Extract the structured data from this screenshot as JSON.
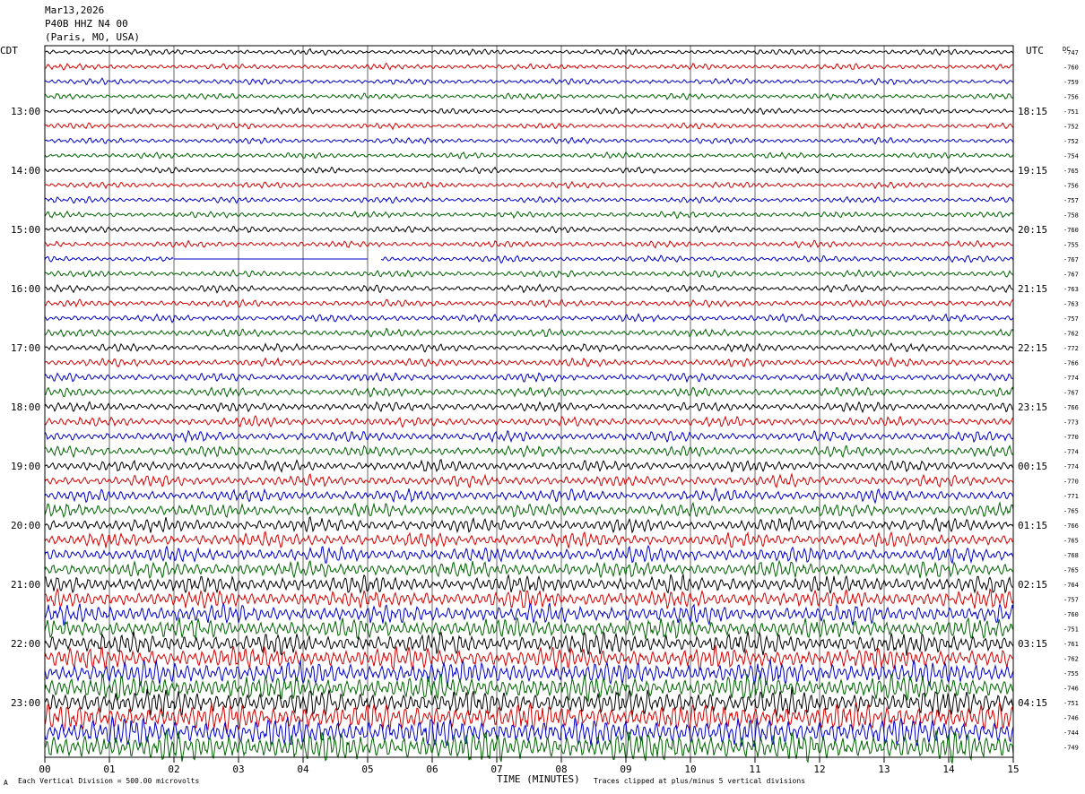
{
  "header": {
    "date": "Mar13,2026",
    "station": "P40B HHZ N4 00",
    "location": "(Paris, MO, USA)"
  },
  "left_zone": "CDT",
  "right_zone": "UTC",
  "dc_header": "DC",
  "footer": {
    "left": "Each Vertical Division =  500.00 microvolts",
    "center": "TIME (MINUTES)",
    "right": "Traces clipped at plus/minus 5 vertical divisions",
    "corner_mark": "A"
  },
  "chart_data": {
    "type": "line",
    "x": [
      "00",
      "01",
      "02",
      "03",
      "04",
      "05",
      "06",
      "07",
      "08",
      "09",
      "10",
      "11",
      "12",
      "13",
      "14",
      "15"
    ],
    "xlabel": "TIME (MINUTES)",
    "xlim": [
      0,
      15
    ],
    "trace_colors": [
      "#000000",
      "#d40000",
      "#0000c8",
      "#006400"
    ],
    "left_hour_labels": [
      "13:00",
      "14:00",
      "15:00",
      "16:00",
      "17:00",
      "18:00",
      "19:00",
      "20:00",
      "21:00",
      "22:00",
      "23:00"
    ],
    "right_hour_labels": [
      "18:15",
      "19:15",
      "20:15",
      "21:15",
      "22:15",
      "23:15",
      "00:15",
      "01:15",
      "02:15",
      "03:15",
      "04:15"
    ],
    "dc_offsets": [
      "-747",
      "-760",
      "-759",
      "-756",
      "-751",
      "-752",
      "-752",
      "-754",
      "-765",
      "-756",
      "-757",
      "-758",
      "-760",
      "-755",
      "-767",
      "-767",
      "-763",
      "-763",
      "-757",
      "-762",
      "-772",
      "-766",
      "-774",
      "-767",
      "-766",
      "-773",
      "-770",
      "-774",
      "-774",
      "-770",
      "-771",
      "-765",
      "-766",
      "-765",
      "-768",
      "-765",
      "-764",
      "-757",
      "-760",
      "-751",
      "-761",
      "-762",
      "-755",
      "-746",
      "-751",
      "-746",
      "-744",
      "-749"
    ],
    "dead_segment": {
      "trace_index": 14,
      "from_minute": 2.0,
      "to_minute": 5.0,
      "gap_to_minute": 5.2
    },
    "grid": true
  }
}
